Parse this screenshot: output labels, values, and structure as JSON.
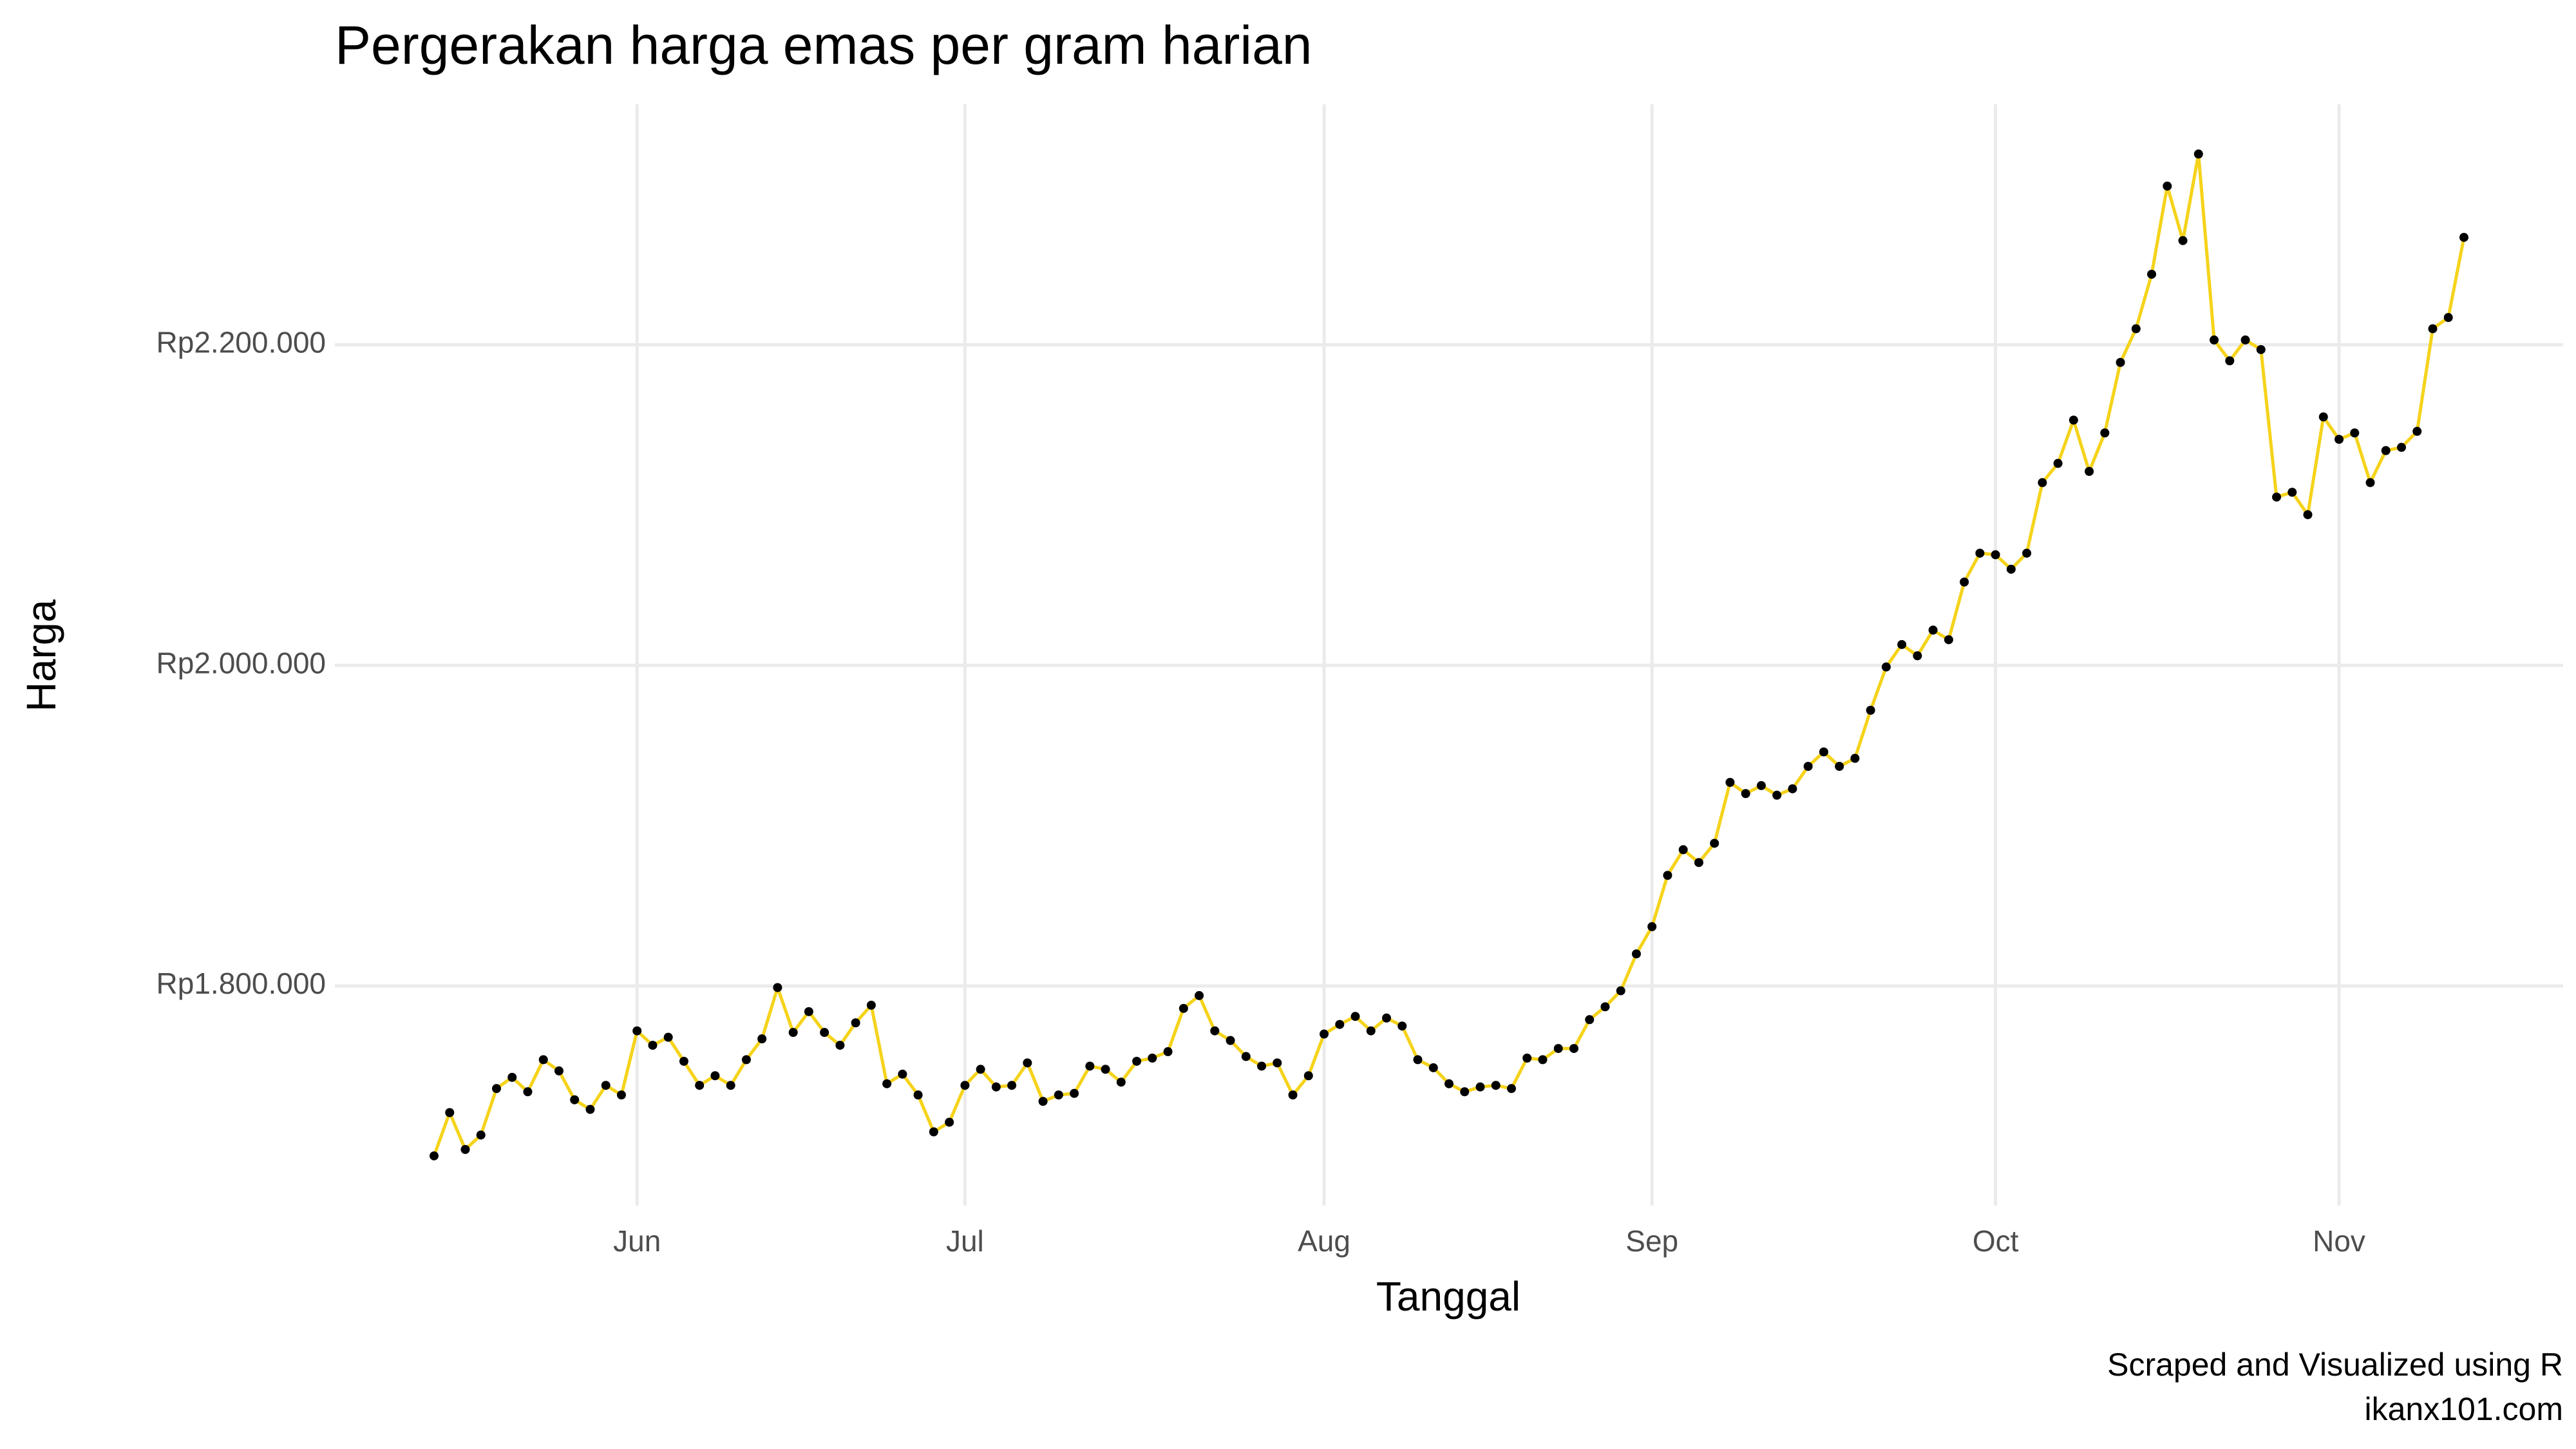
{
  "chart_data": {
    "type": "line",
    "title": "Pergerakan harga emas per gram harian",
    "x_label": "Tanggal",
    "y_label": "Harga",
    "caption": [
      "Scraped and Visualized using R",
      "ikanx101.com"
    ],
    "categories": [
      null,
      null,
      null,
      null,
      null,
      null,
      null,
      null,
      null,
      null,
      null,
      null,
      null,
      "Jun",
      null,
      null,
      null,
      null,
      null,
      null,
      null,
      null,
      null,
      null,
      null,
      null,
      null,
      null,
      null,
      null,
      null,
      null,
      null,
      null,
      "Jul",
      null,
      null,
      null,
      null,
      null,
      null,
      null,
      null,
      null,
      null,
      null,
      null,
      null,
      null,
      null,
      null,
      null,
      null,
      null,
      null,
      null,
      null,
      "Aug",
      null,
      null,
      null,
      null,
      null,
      null,
      null,
      null,
      null,
      null,
      null,
      null,
      null,
      null,
      null,
      null,
      null,
      null,
      null,
      null,
      "Sep",
      null,
      null,
      null,
      null,
      null,
      null,
      null,
      null,
      null,
      null,
      null,
      null,
      null,
      null,
      null,
      null,
      null,
      null,
      null,
      null,
      null,
      "Oct",
      null,
      null,
      null,
      null,
      null,
      null,
      null,
      null,
      null,
      null,
      null,
      null,
      null,
      null,
      null,
      null,
      null,
      null,
      null,
      null,
      null,
      "Nov",
      null,
      null,
      null,
      null,
      null,
      null,
      null,
      null
    ],
    "values": [
      1694000,
      1721000,
      1698000,
      1707000,
      1736000,
      1743000,
      1734000,
      1754000,
      1747000,
      1729000,
      1723000,
      1738000,
      1732000,
      1772000,
      1763000,
      1768000,
      1753000,
      1738000,
      1744000,
      1738000,
      1754000,
      1767000,
      1799000,
      1771000,
      1784000,
      1771000,
      1763000,
      1777000,
      1788000,
      1739000,
      1745000,
      1732000,
      1709000,
      1715000,
      1738000,
      1748000,
      1737000,
      1738000,
      1752000,
      1728000,
      1732000,
      1733000,
      1750000,
      1748000,
      1740000,
      1753000,
      1755000,
      1759000,
      1786000,
      1794000,
      1772000,
      1766000,
      1756000,
      1750000,
      1752000,
      1732000,
      1744000,
      1770000,
      1776000,
      1781000,
      1772000,
      1780000,
      1775000,
      1754000,
      1749000,
      1739000,
      1734000,
      1737000,
      1738000,
      1736000,
      1755000,
      1754000,
      1761000,
      1761000,
      1779000,
      1787000,
      1797000,
      1820000,
      1837000,
      1869000,
      1885000,
      1877000,
      1889000,
      1927000,
      1920000,
      1925000,
      1919000,
      1923000,
      1937000,
      1946000,
      1937000,
      1942000,
      1972000,
      1999000,
      2013000,
      2006000,
      2022000,
      2016000,
      2052000,
      2070000,
      2069000,
      2060000,
      2070000,
      2114000,
      2126000,
      2153000,
      2121000,
      2145000,
      2189000,
      2210000,
      2244000,
      2299000,
      2265000,
      2319000,
      2203000,
      2190000,
      2203000,
      2197000,
      2105000,
      2108000,
      2094000,
      2155000,
      2141000,
      2145000,
      2114000,
      2134000,
      2136000,
      2146000,
      2210000,
      2217000,
      2267000
    ],
    "color": "#f5d31a",
    "point_color": "#000000",
    "ylim": [
      1663000,
      2350000
    ],
    "yticks": [
      {
        "value": 1800000,
        "label": "Rp1.800.000"
      },
      {
        "value": 2000000,
        "label": "Rp2.000.000"
      },
      {
        "value": 2200000,
        "label": "Rp2.200.000"
      }
    ],
    "grid": true
  }
}
